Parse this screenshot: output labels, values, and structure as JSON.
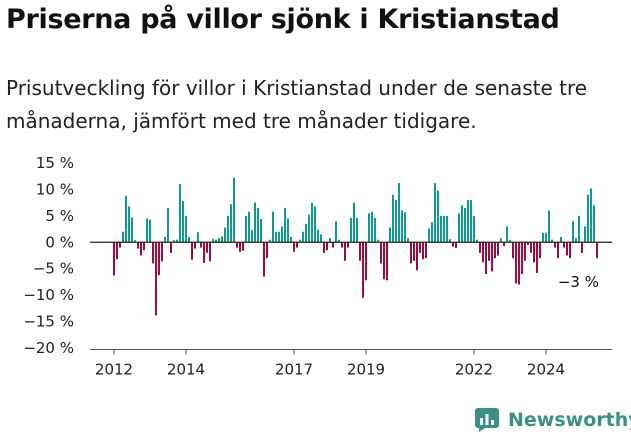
{
  "title": "Priserna på villor sjönk i Kristianstad",
  "subtitle": "Prisutveckling för villor i Kristianstad under de senaste tre månaderna, jämfört med tre månader tidigare.",
  "brand": {
    "name": "Newsworthy"
  },
  "colors": {
    "positive": "#0f9b8e",
    "negative": "#9e0b3f",
    "axis": "#555555",
    "brand": "#3d8f86"
  },
  "chart_data": {
    "type": "bar",
    "title": "",
    "xlabel": "",
    "ylabel": "",
    "ylim": [
      -20,
      15
    ],
    "yticks": [
      15,
      10,
      5,
      0,
      -5,
      -10,
      -15,
      -20
    ],
    "ytick_labels": [
      "15 %",
      "10 %",
      "5 %",
      "0 %",
      "−5 %",
      "−10 %",
      "−15 %",
      "−20 %"
    ],
    "x_start": "2012-01",
    "frequency": "monthly",
    "xtick_labels": [
      {
        "label": "2012",
        "date": "2012-01"
      },
      {
        "label": "2014",
        "date": "2014-01"
      },
      {
        "label": "2017",
        "date": "2017-01"
      },
      {
        "label": "2019",
        "date": "2019-01"
      },
      {
        "label": "2022",
        "date": "2022-01"
      },
      {
        "label": "2024",
        "date": "2024-01"
      }
    ],
    "annotation": {
      "label": "−3 %",
      "date": "2024-12",
      "value": -3
    },
    "values": [
      -6.3,
      -3.2,
      -1.0,
      2.0,
      8.8,
      6.8,
      4.7,
      0.4,
      -1.2,
      -2.5,
      -1.5,
      4.5,
      4.3,
      -4.0,
      -13.8,
      -6.2,
      -3.6,
      1.0,
      6.5,
      -2.0,
      0.4,
      0.5,
      11.0,
      7.8,
      5.0,
      1.0,
      -3.3,
      -1.2,
      1.9,
      -1.0,
      -3.9,
      -2.0,
      -3.6,
      0.6,
      0.5,
      0.8,
      1.1,
      2.8,
      5.0,
      7.2,
      12.2,
      -1.0,
      -1.8,
      -1.6,
      5.0,
      5.8,
      2.3,
      7.5,
      6.5,
      4.4,
      -6.5,
      -3.0,
      0.5,
      5.8,
      2.0,
      2.0,
      3.0,
      6.5,
      4.5,
      1.0,
      -1.8,
      -1.0,
      0.5,
      2.0,
      3.5,
      5.2,
      7.5,
      6.8,
      2.4,
      1.5,
      -2.0,
      -1.5,
      0.8,
      -1.0,
      4.0,
      0.5,
      -1.0,
      -3.5,
      -1.0,
      4.6,
      7.5,
      4.6,
      -3.5,
      -10.5,
      -7.2,
      5.5,
      5.8,
      4.6,
      0.5,
      -4.0,
      -7.0,
      -7.2,
      2.8,
      9.0,
      8.0,
      11.2,
      6.0,
      5.7,
      0.8,
      -4.0,
      -3.5,
      -5.3,
      -2.0,
      -3.2,
      -3.0,
      2.6,
      3.8,
      11.2,
      9.8,
      5.0,
      5.0,
      5.0,
      0.6,
      -0.8,
      -1.1,
      5.5,
      7.0,
      6.5,
      8.0,
      8.0,
      5.0,
      0.5,
      -2.0,
      -3.8,
      -6.0,
      -3.5,
      -5.5,
      -3.0,
      -2.5,
      0.8,
      -0.7,
      3.0,
      0.5,
      -3.0,
      -7.8,
      -8.0,
      -6.0,
      -3.5,
      -0.5,
      -2.0,
      -3.8,
      -5.8,
      -3.0,
      1.8,
      1.8,
      6.0,
      0.5,
      -1.0,
      -3.0,
      1.0,
      -1.0,
      -2.5,
      -3.0,
      4.0,
      0.8,
      5.0,
      -2.0,
      3.0,
      9.0,
      10.2,
      7.0,
      -3.0
    ]
  }
}
